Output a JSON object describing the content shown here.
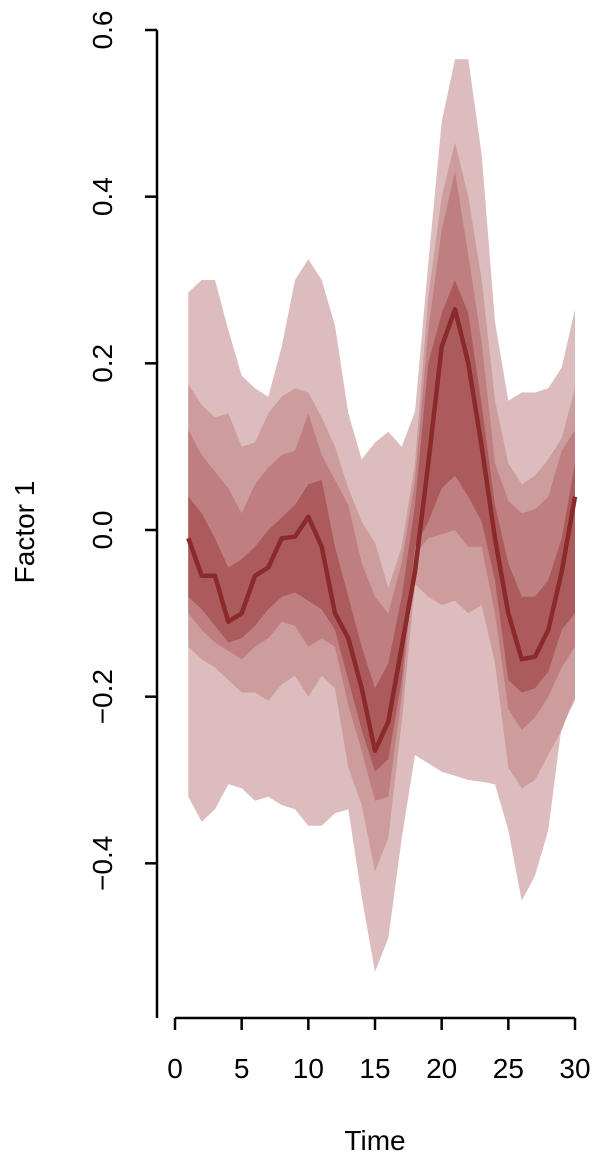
{
  "chart_data": {
    "type": "area",
    "xlabel": "Time",
    "ylabel": "Factor 1",
    "xlim": [
      0,
      31
    ],
    "ylim": [
      -0.57,
      0.61
    ],
    "x_ticks": [
      0,
      5,
      10,
      15,
      20,
      25,
      30
    ],
    "y_ticks": [
      -0.4,
      -0.2,
      0.0,
      0.2,
      0.4,
      0.6
    ],
    "x_tick_labels": [
      "0",
      "5",
      "10",
      "15",
      "20",
      "25",
      "30"
    ],
    "y_tick_labels": [
      "−0.4",
      "−0.2",
      "0.0",
      "0.2",
      "0.4",
      "0.6"
    ],
    "grid": false,
    "legend": "none",
    "x": [
      1,
      2,
      3,
      4,
      5,
      6,
      7,
      8,
      9,
      10,
      11,
      12,
      13,
      14,
      15,
      16,
      17,
      18,
      19,
      20,
      21,
      22,
      23,
      24,
      25,
      26,
      27,
      28,
      29,
      30
    ],
    "median": [
      -0.01,
      -0.055,
      -0.055,
      -0.11,
      -0.1,
      -0.055,
      -0.045,
      -0.01,
      -0.008,
      0.016,
      -0.02,
      -0.1,
      -0.13,
      -0.19,
      -0.265,
      -0.23,
      -0.14,
      -0.05,
      0.08,
      0.22,
      0.265,
      0.2,
      0.1,
      -0.01,
      -0.1,
      -0.155,
      -0.152,
      -0.12,
      -0.05,
      0.04
    ],
    "bands": [
      {
        "level": "outer",
        "lower": [
          -0.32,
          -0.35,
          -0.335,
          -0.305,
          -0.31,
          -0.325,
          -0.32,
          -0.33,
          -0.335,
          -0.355,
          -0.355,
          -0.34,
          -0.335,
          -0.44,
          -0.53,
          -0.49,
          -0.37,
          -0.27,
          -0.28,
          -0.29,
          -0.295,
          -0.3,
          -0.302,
          -0.305,
          -0.36,
          -0.445,
          -0.415,
          -0.36,
          -0.235,
          -0.205
        ],
        "upper": [
          0.285,
          0.3,
          0.3,
          0.24,
          0.185,
          0.17,
          0.16,
          0.22,
          0.3,
          0.325,
          0.3,
          0.245,
          0.14,
          0.085,
          0.105,
          0.118,
          0.1,
          0.142,
          0.32,
          0.49,
          0.565,
          0.565,
          0.45,
          0.25,
          0.155,
          0.165,
          0.165,
          0.17,
          0.195,
          0.265
        ]
      },
      {
        "level": "second",
        "lower": [
          -0.14,
          -0.155,
          -0.165,
          -0.18,
          -0.195,
          -0.195,
          -0.205,
          -0.185,
          -0.175,
          -0.2,
          -0.175,
          -0.19,
          -0.285,
          -0.33,
          -0.41,
          -0.37,
          -0.23,
          -0.065,
          -0.08,
          -0.09,
          -0.085,
          -0.1,
          -0.09,
          -0.16,
          -0.285,
          -0.31,
          -0.3,
          -0.27,
          -0.24,
          -0.2
        ],
        "upper": [
          0.175,
          0.15,
          0.135,
          0.14,
          0.1,
          0.105,
          0.14,
          0.16,
          0.17,
          0.165,
          0.135,
          0.1,
          0.05,
          0.01,
          -0.015,
          -0.07,
          -0.02,
          0.08,
          0.28,
          0.4,
          0.465,
          0.4,
          0.3,
          0.155,
          0.08,
          0.055,
          0.065,
          0.085,
          0.11,
          0.17
        ]
      },
      {
        "level": "third",
        "lower": [
          -0.1,
          -0.12,
          -0.135,
          -0.145,
          -0.155,
          -0.14,
          -0.13,
          -0.11,
          -0.115,
          -0.14,
          -0.13,
          -0.14,
          -0.21,
          -0.265,
          -0.325,
          -0.32,
          -0.2,
          -0.03,
          -0.01,
          -0.005,
          0.0,
          -0.02,
          -0.02,
          -0.1,
          -0.215,
          -0.24,
          -0.225,
          -0.2,
          -0.165,
          -0.14
        ],
        "upper": [
          0.12,
          0.09,
          0.07,
          0.05,
          0.02,
          0.055,
          0.075,
          0.09,
          0.095,
          0.14,
          0.09,
          0.06,
          0.03,
          -0.04,
          -0.08,
          -0.1,
          -0.04,
          0.06,
          0.24,
          0.36,
          0.43,
          0.33,
          0.225,
          0.08,
          0.035,
          0.02,
          0.025,
          0.04,
          0.095,
          0.12
        ]
      },
      {
        "level": "fourth",
        "lower": [
          -0.08,
          -0.095,
          -0.115,
          -0.135,
          -0.13,
          -0.115,
          -0.095,
          -0.08,
          -0.075,
          -0.085,
          -0.095,
          -0.12,
          -0.18,
          -0.24,
          -0.29,
          -0.275,
          -0.18,
          -0.02,
          0.01,
          0.05,
          0.065,
          0.04,
          0.01,
          -0.06,
          -0.18,
          -0.195,
          -0.19,
          -0.17,
          -0.12,
          -0.1
        ],
        "upper": [
          0.04,
          0.02,
          -0.01,
          -0.045,
          -0.035,
          -0.02,
          0.0,
          0.015,
          0.03,
          0.055,
          0.06,
          -0.02,
          -0.08,
          -0.14,
          -0.19,
          -0.16,
          -0.08,
          0.03,
          0.2,
          0.26,
          0.3,
          0.26,
          0.15,
          0.03,
          -0.04,
          -0.08,
          -0.08,
          -0.06,
          -0.01,
          0.08
        ]
      }
    ],
    "colors": {
      "band_outer": "#dcbcbd",
      "band_second": "#cd9c9d",
      "band_third": "#bf7f80",
      "band_fourth": "#ac5b5c",
      "median_line": "#8b2a2b"
    }
  }
}
